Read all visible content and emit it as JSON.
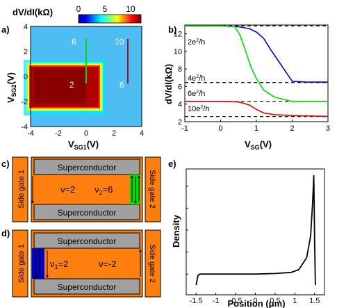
{
  "panels": {
    "a": {
      "label": "a)",
      "colorbar_title": "dV/dI(kΩ)",
      "colorbar_ticks": [
        "0",
        "5",
        "10"
      ],
      "xlabel_main": "V",
      "xlabel_sub": "SG1",
      "xlabel_unit": "(V)",
      "ylabel_main": "V",
      "ylabel_sub": "SG2",
      "ylabel_unit": "(V)",
      "xticks": [
        "-4",
        "-2",
        "0",
        "2",
        "4"
      ],
      "yticks": [
        "4",
        "2",
        "0",
        "-2",
        "-4"
      ],
      "annotations": [
        "6",
        "10",
        "2",
        "6"
      ]
    },
    "b": {
      "label": "b)",
      "ylabel": "dV/dI(kΩ)",
      "xlabel_main": "V",
      "xlabel_sub": "SG",
      "xlabel_unit": "(V)",
      "xticks": [
        "-1",
        "0",
        "1",
        "2",
        "3"
      ],
      "yticks": [
        "2",
        "4",
        "6",
        "8",
        "10",
        "12"
      ],
      "level_labels": [
        {
          "coef": "2e",
          "sup": "2",
          "den": "/h"
        },
        {
          "coef": "4e",
          "sup": "2",
          "den": "/h"
        },
        {
          "coef": "6e",
          "sup": "2",
          "den": "/h"
        },
        {
          "coef": "10e",
          "sup": "2",
          "den": "/h"
        }
      ]
    },
    "c": {
      "label": "c)",
      "sc_top": "Superconductor",
      "sc_bottom": "Superconductor",
      "side_gate_1": "Side gate 1",
      "side_gate_2": "Side gate 2",
      "nu_main": "ν=2",
      "nu_edge": "ν",
      "nu_edge_sub": "2",
      "nu_edge_val": "=6"
    },
    "d": {
      "label": "d)",
      "sc_top": "Superconductor",
      "sc_bottom": "Superconductor",
      "side_gate_1": "Side gate 1",
      "side_gate_2": "Side gate 2",
      "nu_edge": "ν",
      "nu_edge_sub": "1",
      "nu_edge_val": "=2",
      "nu_main": "ν=-2"
    },
    "e": {
      "label": "e)",
      "ylabel": "Density",
      "xlabel": "Position (μm)",
      "xticks": [
        "-1.5",
        "-1",
        "-0.5",
        "0",
        "0.5",
        "1",
        "1.5"
      ]
    }
  },
  "colors": {
    "orange": "#ff7f0e",
    "gray": "#a0a0a0",
    "green": "#00dd00",
    "blue": "#0000c8",
    "red": "#e00000",
    "dark_red": "#7a0000"
  },
  "chart_data": [
    {
      "type": "heatmap",
      "title": "dV/dI(kΩ)",
      "xlabel": "VSG1(V)",
      "ylabel": "VSG2(V)",
      "xlim": [
        -4,
        4
      ],
      "ylim": [
        -4,
        4
      ],
      "color_range": [
        0,
        12
      ],
      "note": "central plateau ~12 kΩ for VSG1 in [-2.5,0] and VSG2 in [-2.3,0.6]; ~6 kΩ ring; ~2-3 kΩ background",
      "cut_lines": [
        {
          "color": "green",
          "x": 0,
          "y": [
            -1,
            3
          ]
        },
        {
          "color": "dark_red",
          "x": 3,
          "y": [
            -1,
            3
          ]
        }
      ]
    },
    {
      "type": "line",
      "xlabel": "VSG(V)",
      "ylabel": "dV/dI(kΩ)",
      "xlim": [
        -1,
        3
      ],
      "ylim": [
        2,
        13
      ],
      "reference_levels": [
        12.9,
        6.45,
        4.3,
        2.58
      ],
      "series": [
        {
          "color": "blue",
          "x": [
            -1,
            0,
            0.5,
            0.8,
            1.0,
            1.2,
            1.4,
            1.6,
            1.8,
            2.0,
            2.4,
            3.0
          ],
          "y": [
            12.9,
            12.9,
            12.8,
            12.6,
            12.2,
            11.5,
            10.2,
            9.0,
            7.8,
            6.6,
            6.5,
            6.5
          ]
        },
        {
          "color": "green",
          "x": [
            -1,
            0,
            0.4,
            0.55,
            0.7,
            0.85,
            1.0,
            1.2,
            1.5,
            2.0,
            3.0
          ],
          "y": [
            12.9,
            12.9,
            12.8,
            11.8,
            10.0,
            8.2,
            6.9,
            5.6,
            4.8,
            4.3,
            4.3
          ]
        },
        {
          "color": "red",
          "x": [
            -1,
            0,
            0.5,
            0.8,
            1.0,
            1.2,
            1.5,
            2.0,
            3.0
          ],
          "y": [
            4.3,
            4.3,
            4.25,
            3.9,
            3.4,
            3.0,
            2.8,
            2.7,
            2.6
          ]
        }
      ]
    },
    {
      "type": "line",
      "xlabel": "Position (μm)",
      "ylabel": "Density",
      "xlim": [
        -1.75,
        1.75
      ],
      "series": [
        {
          "x": [
            -1.5,
            -1.45,
            -1.4,
            -1.0,
            0,
            0.5,
            0.9,
            1.1,
            1.3,
            1.4,
            1.45,
            1.48,
            1.5,
            1.52
          ],
          "y": [
            0,
            0.09,
            0.1,
            0.1,
            0.1,
            0.105,
            0.115,
            0.14,
            0.25,
            0.45,
            0.75,
            1.0,
            0.4,
            0
          ]
        }
      ]
    }
  ]
}
